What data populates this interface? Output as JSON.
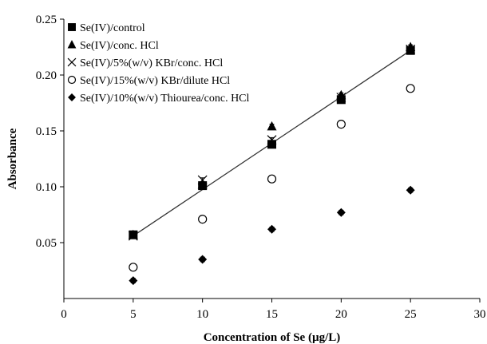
{
  "chart_data": {
    "type": "scatter",
    "xlabel": "Concentration of Se (µg/L)",
    "ylabel": "Absorbance",
    "xlim": [
      0,
      30
    ],
    "ylim": [
      0,
      0.25
    ],
    "xticks": [
      "0",
      "5",
      "10",
      "15",
      "20",
      "25",
      "30"
    ],
    "yticks": [
      "0.05",
      "0.10",
      "0.15",
      "0.20",
      "0.25"
    ],
    "grid": false,
    "legend_position": "top-left",
    "series": [
      {
        "name": "Se(IV)/control",
        "marker": "square",
        "x": [
          5,
          10,
          15,
          20,
          25
        ],
        "y": [
          0.057,
          0.101,
          0.138,
          0.178,
          0.222
        ],
        "err": [
          0.002,
          0.003,
          0.003,
          0.003,
          0.003
        ]
      },
      {
        "name": "Se(IV)/conc. HCl",
        "marker": "triangle",
        "x": [
          5,
          10,
          15,
          20,
          25
        ],
        "y": [
          0.057,
          0.102,
          0.154,
          0.182,
          0.225
        ],
        "err": [
          0.002,
          0.002,
          0.002,
          0.002,
          0.002
        ]
      },
      {
        "name": "Se(IV)/5%(w/v) KBr/conc. HCl",
        "marker": "x",
        "x": [
          5,
          10,
          15,
          20,
          25
        ],
        "y": [
          0.056,
          0.106,
          0.142,
          0.18,
          0.223
        ],
        "err": [
          0.002,
          0.002,
          0.002,
          0.002,
          0.002
        ]
      },
      {
        "name": "Se(IV)/15%(w/v) KBr/dilute HCl",
        "marker": "circle-open",
        "x": [
          5,
          10,
          15,
          20,
          25
        ],
        "y": [
          0.028,
          0.071,
          0.107,
          0.156,
          0.188
        ],
        "err": [
          0.003,
          0.003,
          0.003,
          0.003,
          0.003
        ]
      },
      {
        "name": "Se(IV)/10%(w/v) Thiourea/conc. HCl",
        "marker": "diamond",
        "x": [
          5,
          10,
          15,
          20,
          25
        ],
        "y": [
          0.016,
          0.035,
          0.062,
          0.077,
          0.097
        ],
        "err": [
          0.002,
          0.002,
          0.002,
          0.002,
          0.002
        ]
      }
    ],
    "trendline": {
      "x": [
        5,
        25
      ],
      "y": [
        0.056,
        0.222
      ]
    }
  }
}
